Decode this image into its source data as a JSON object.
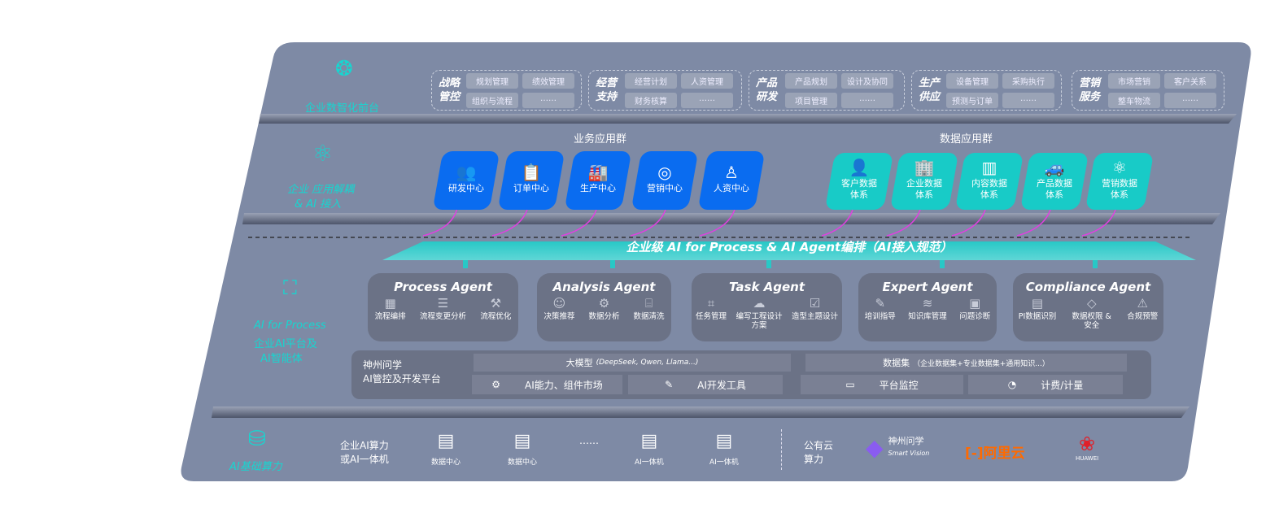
{
  "front": {
    "label": "企业数智化前台",
    "groups": [
      {
        "title": "战略管控",
        "items": [
          "规划管理",
          "绩效管理",
          "组织与流程",
          "……"
        ]
      },
      {
        "title": "经营支持",
        "items": [
          "经营计划",
          "人资管理",
          "财务核算",
          "……"
        ]
      },
      {
        "title": "产品研发",
        "items": [
          "产品规划",
          "设计及协同",
          "项目管理",
          "……"
        ]
      },
      {
        "title": "生产供应",
        "items": [
          "设备管理",
          "采购执行",
          "预测与订单",
          "……"
        ]
      },
      {
        "title": "营销服务",
        "items": [
          "市场营销",
          "客户关系",
          "整车物流",
          "……"
        ]
      }
    ]
  },
  "apps": {
    "label_1": "企业 应用解耦",
    "label_2": "& AI 接入",
    "business_title": "业务应用群",
    "business": [
      {
        "label": "研发中心",
        "icon": "people-icon"
      },
      {
        "label": "订单中心",
        "icon": "clipboard-icon"
      },
      {
        "label": "生产中心",
        "icon": "factory-icon"
      },
      {
        "label": "营销中心",
        "icon": "target-icon"
      },
      {
        "label": "人资中心",
        "icon": "person-icon"
      }
    ],
    "data_title": "数据应用群",
    "data": [
      {
        "l1": "客户数据",
        "l2": "体系",
        "icon": "user-icon"
      },
      {
        "l1": "企业数据",
        "l2": "体系",
        "icon": "building-icon"
      },
      {
        "l1": "内容数据",
        "l2": "体系",
        "icon": "books-icon"
      },
      {
        "l1": "产品数据",
        "l2": "体系",
        "icon": "car-icon"
      },
      {
        "l1": "营销数据",
        "l2": "体系",
        "icon": "atom-icon"
      }
    ]
  },
  "ai": {
    "label_1": "AI for Process",
    "label_2": "企业AI平台及",
    "label_3": "AI智能体",
    "banner": "企业级 AI for Process & AI Agent编排（AI接入规范）",
    "agents": [
      {
        "name": "Process Agent",
        "items": [
          "流程编排",
          "流程变更分析",
          "流程优化"
        ]
      },
      {
        "name": "Analysis Agent",
        "items": [
          "决策推荐",
          "数据分析",
          "数据清洗"
        ]
      },
      {
        "name": "Task Agent",
        "items": [
          "任务管理",
          "编写工程设计方案",
          "造型主题设计"
        ]
      },
      {
        "name": "Expert Agent",
        "items": [
          "培训指导",
          "知识库管理",
          "问题诊断"
        ]
      },
      {
        "name": "Compliance Agent",
        "items": [
          "PI数据识别",
          "数据权限 & 安全",
          "合规预警"
        ]
      }
    ],
    "platform": {
      "title_1": "神州问学",
      "title_2": "AI管控及开发平台",
      "llm": "大模型",
      "llm_note": "(DeepSeek, Qwen, Llama...)",
      "dataset": "数据集",
      "dataset_note": "（企业数据集+专业数据集+通用知识...）",
      "market": "AI能力、组件市场",
      "devtools": "AI开发工具",
      "monitor": "平台监控",
      "billing": "计费/计量"
    }
  },
  "infra": {
    "label": "AI基础算力",
    "private_1": "企业AI算力",
    "private_2": "或AI一体机",
    "items": [
      "数据中心",
      "数据中心",
      "AI一体机",
      "AI一体机"
    ],
    "ellipsis": "……",
    "public_1": "公有云",
    "public_2": "算力",
    "vendors": {
      "shenzhou": "神州问学",
      "shenzhou_sub": "Smart Vision",
      "aliyun": "阿里云",
      "huawei": "HUAWEI"
    }
  },
  "colors": {
    "slab": "#7e8aa5",
    "teal": "#17d6d0",
    "blue": "#0a6cf0",
    "cyan": "#18cbc7",
    "arrow": "#e040e0",
    "aliyun": "#ff6a00",
    "huawei": "#e0202a"
  }
}
